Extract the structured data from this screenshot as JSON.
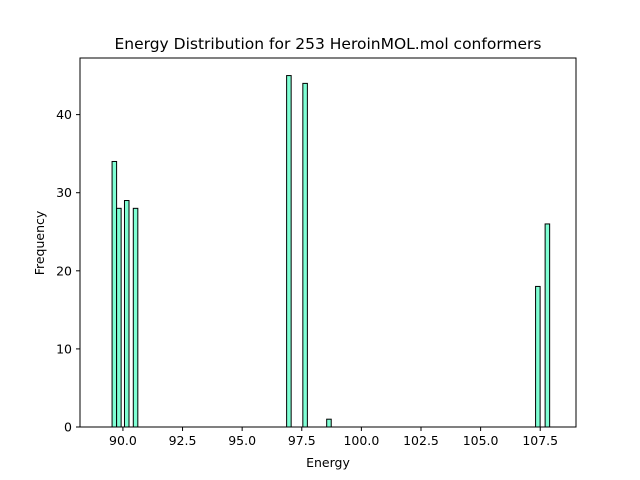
{
  "chart_data": {
    "type": "bar",
    "title": "Energy Distribution for 253 HeroinMOL.mol conformers",
    "xlabel": "Energy",
    "ylabel": "Frequency",
    "xlim": [
      88.2,
      109.0
    ],
    "ylim": [
      0,
      47.25
    ],
    "xticks": [
      "90.0",
      "92.5",
      "95.0",
      "97.5",
      "100.0",
      "102.5",
      "105.0",
      "107.5"
    ],
    "yticks": [
      "0",
      "10",
      "20",
      "30",
      "40"
    ],
    "bar_width": 0.19,
    "grid": false,
    "bars": [
      {
        "x": 89.64,
        "value": 34
      },
      {
        "x": 89.83,
        "value": 28
      },
      {
        "x": 90.16,
        "value": 29
      },
      {
        "x": 90.53,
        "value": 28
      },
      {
        "x": 96.96,
        "value": 45
      },
      {
        "x": 97.64,
        "value": 44
      },
      {
        "x": 98.64,
        "value": 1
      },
      {
        "x": 107.4,
        "value": 18
      },
      {
        "x": 107.8,
        "value": 26
      }
    ],
    "colors": {
      "bar_fill": "#7fffd4",
      "bar_edge": "#000000"
    }
  }
}
